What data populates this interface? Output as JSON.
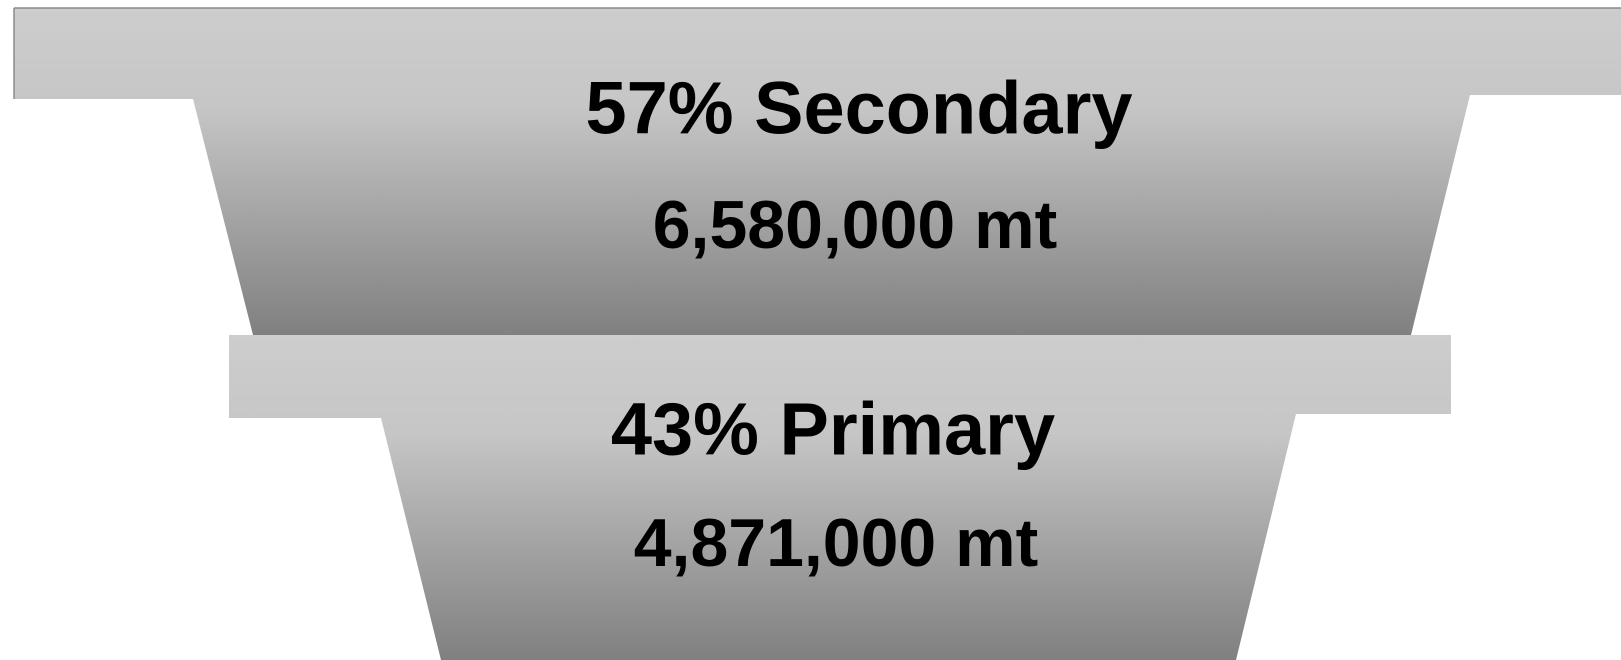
{
  "segments": [
    {
      "title": "57% Secondary",
      "amount": "6,580,000 mt"
    },
    {
      "title": "43% Primary",
      "amount": "4,871,000 mt"
    }
  ]
}
